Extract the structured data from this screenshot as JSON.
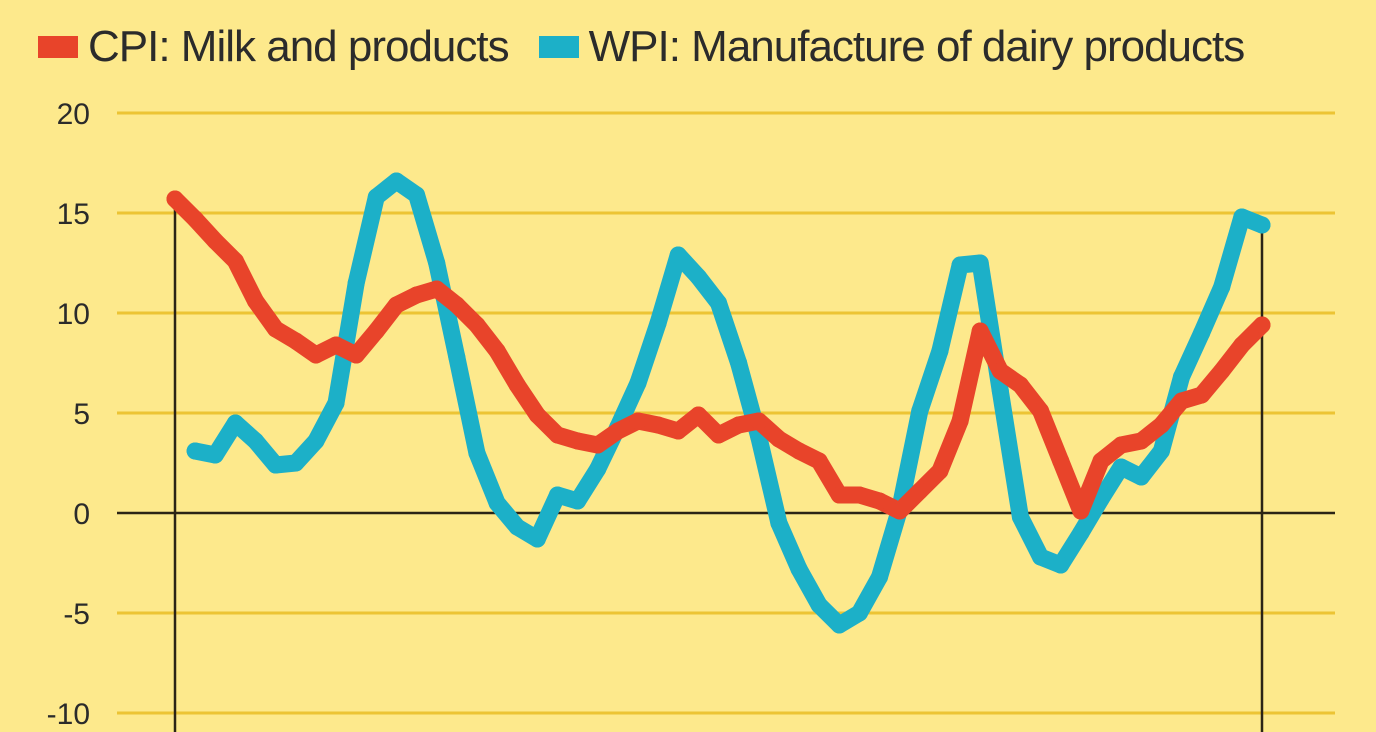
{
  "chart_data": {
    "type": "line",
    "title": "",
    "xlabel": "",
    "ylabel": "",
    "ylim": [
      -10,
      20
    ],
    "yticks": [
      "20",
      "15",
      "10",
      "5",
      "0",
      "-5",
      "-10"
    ],
    "ytick_values": [
      20,
      15,
      10,
      5,
      0,
      -5,
      -10
    ],
    "xlim": [
      0,
      54
    ],
    "grid": true,
    "legend_position": "top",
    "background": "#fde98c",
    "series": [
      {
        "name": "CPI: Milk and products",
        "color": "#e8442a",
        "x": [
          0,
          1,
          2,
          3,
          4,
          5,
          6,
          7,
          8,
          9,
          10,
          11,
          12,
          13,
          14,
          15,
          16,
          17,
          18,
          19,
          20,
          21,
          22,
          23,
          24,
          25,
          26,
          27,
          28,
          29,
          30,
          31,
          32,
          33,
          34,
          35,
          36,
          37,
          38,
          39,
          40,
          41,
          42,
          43,
          44,
          45,
          46,
          47,
          48,
          49,
          50,
          51,
          52,
          53,
          54
        ],
        "values": [
          15.7,
          14.7,
          13.6,
          12.6,
          10.6,
          9.2,
          8.6,
          7.9,
          8.4,
          7.9,
          9.1,
          10.4,
          10.9,
          11.2,
          10.4,
          9.4,
          8.1,
          6.4,
          4.9,
          3.9,
          3.6,
          3.4,
          4.1,
          4.6,
          4.4,
          4.1,
          4.9,
          3.9,
          4.4,
          4.6,
          3.7,
          3.1,
          2.6,
          0.9,
          0.9,
          0.6,
          0.1,
          1.1,
          2.1,
          4.6,
          9.1,
          7.1,
          6.4,
          5.1,
          2.6,
          0.1,
          2.6,
          3.4,
          3.6,
          4.4,
          5.6,
          5.9,
          7.1,
          8.4,
          9.4
        ]
      },
      {
        "name": "WPI: Manufacture of dairy products",
        "color": "#1cb0c8",
        "x": [
          1,
          2,
          3,
          4,
          5,
          6,
          7,
          8,
          9,
          10,
          11,
          12,
          13,
          14,
          15,
          16,
          17,
          18,
          19,
          20,
          21,
          22,
          23,
          24,
          25,
          26,
          27,
          28,
          29,
          30,
          31,
          32,
          33,
          34,
          35,
          36,
          37,
          38,
          39,
          40,
          41,
          42,
          43,
          44,
          45,
          46,
          47,
          48,
          49,
          50,
          51,
          52,
          53,
          54
        ],
        "values": [
          3.1,
          2.9,
          4.5,
          3.6,
          2.4,
          2.5,
          3.6,
          5.5,
          11.5,
          15.8,
          16.6,
          15.9,
          12.5,
          7.8,
          3.0,
          0.5,
          -0.7,
          -1.3,
          0.9,
          0.6,
          2.2,
          4.3,
          6.5,
          9.5,
          12.9,
          11.8,
          10.5,
          7.5,
          3.8,
          -0.5,
          -2.8,
          -4.6,
          -5.6,
          -5.0,
          -3.2,
          0.2,
          5.1,
          8.1,
          12.4,
          12.5,
          6.1,
          -0.2,
          -2.2,
          -2.6,
          -1.0,
          0.7,
          2.3,
          1.8,
          3.1,
          6.8,
          9.0,
          11.3,
          14.8,
          14.4
        ]
      }
    ]
  }
}
